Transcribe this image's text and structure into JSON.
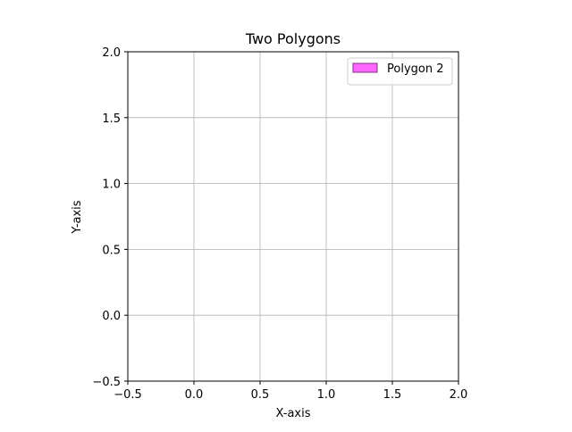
{
  "chart_data": {
    "type": "area",
    "title": "Two Polygons",
    "xlabel": "X-axis",
    "ylabel": "Y-axis",
    "xlim": [
      -0.5,
      2.0
    ],
    "ylim": [
      -0.5,
      2.0
    ],
    "x_ticks": [
      -0.5,
      0.0,
      0.5,
      1.0,
      1.5,
      2.0
    ],
    "y_ticks": [
      -0.5,
      0.0,
      0.5,
      1.0,
      1.5,
      2.0
    ],
    "x_tick_labels": [
      "−0.5",
      "0.0",
      "0.5",
      "1.0",
      "1.5",
      "2.0"
    ],
    "y_tick_labels": [
      "−0.5",
      "0.0",
      "0.5",
      "1.0",
      "1.5",
      "2.0"
    ],
    "grid": true,
    "legend_position": "top-right",
    "series": [
      {
        "name": "Polygon 2",
        "color": "#ff66ff",
        "edge_color": "#7f337f",
        "points": []
      }
    ]
  }
}
